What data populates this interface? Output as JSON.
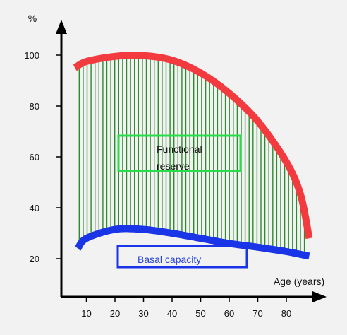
{
  "chart_data": {
    "type": "area",
    "xlabel": "Age (years)",
    "ylabel": "%",
    "x_ticks": [
      10,
      20,
      30,
      40,
      50,
      60,
      70,
      80
    ],
    "y_ticks": [
      20,
      40,
      60,
      80,
      100
    ],
    "xlim": [
      0,
      91
    ],
    "ylim": [
      5,
      105
    ],
    "grid": false,
    "series": [
      {
        "name": "Functional reserve",
        "role": "upper-boundary",
        "color": "#f23a3f",
        "x": [
          6,
          10,
          20,
          30,
          40,
          50,
          60,
          70,
          80,
          85,
          88
        ],
        "y": [
          95,
          97.5,
          99.5,
          99.8,
          98,
          93,
          85,
          74,
          58,
          45,
          28
        ]
      },
      {
        "name": "Basal capacity",
        "role": "lower-boundary",
        "color": "#1a35e8",
        "x": [
          7,
          10,
          20,
          30,
          40,
          50,
          60,
          70,
          80,
          88
        ],
        "y": [
          24,
          28,
          31.5,
          31.5,
          30,
          28,
          26,
          24.5,
          22.8,
          21
        ]
      }
    ],
    "fill": {
      "pattern": "vertical-lines",
      "color": "#2e8b2e"
    },
    "annotations": [
      {
        "text_lines": [
          "Functional",
          "reserve"
        ],
        "box_color": "#27dd4a"
      },
      {
        "text_lines": [
          "Basal capacity"
        ],
        "box_color": "#1a35e8",
        "text_color": "#2b45d6"
      }
    ]
  }
}
